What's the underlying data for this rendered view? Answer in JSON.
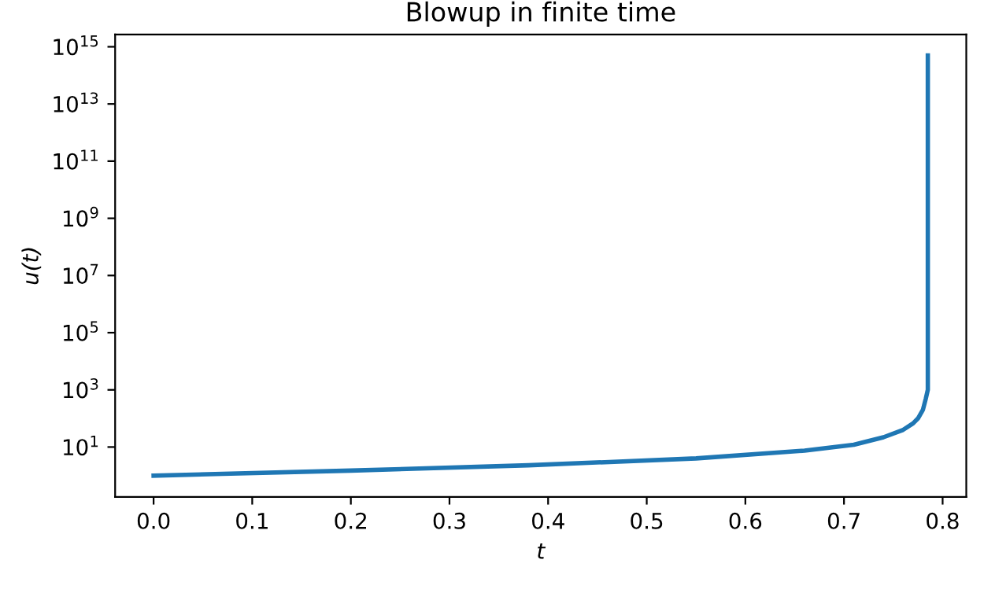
{
  "chart_data": {
    "type": "line",
    "title": "Blowup in finite time",
    "xlabel": "t",
    "ylabel": "u(t)",
    "log": "y",
    "x": [
      0,
      0.07,
      0.2,
      0.38,
      0.55,
      0.66,
      0.71,
      0.74,
      0.76,
      0.77,
      0.775,
      0.78,
      0.783,
      0.785,
      0.785,
      0.785,
      0.785
    ],
    "series": [
      {
        "color": "#1f77b4",
        "values": [
          1,
          1.15,
          1.5,
          2.3,
          4,
          7.5,
          12,
          22,
          40,
          67,
          100,
          200,
          500,
          1000,
          1000000,
          10000000000,
          500000000000000
        ]
      }
    ],
    "xlim": [
      -0.039,
      0.824
    ],
    "xticks": [
      {
        "value": 0,
        "label": "0.0"
      },
      0.1,
      0.2,
      0.3,
      0.4,
      0.5,
      0.6,
      0.7,
      0.8
    ],
    "ylim": [
      0.18,
      2700000000000000.0
    ],
    "yticks": [
      {
        "value": 10,
        "label": "10$^{1}$"
      },
      {
        "value": 1000,
        "label": "10$^{3}$"
      },
      {
        "value": 100000,
        "label": "10$^{5}$"
      },
      {
        "value": 10000000,
        "label": "10$^{7}$"
      },
      {
        "value": 1000000000,
        "label": "10$^{9}$"
      },
      {
        "value": 100000000000,
        "label": "10$^{11}$"
      },
      {
        "value": 10000000000000,
        "label": "10$^{13}$"
      },
      {
        "value": 1000000000000000,
        "label": "10$^{15}$"
      }
    ],
    "grid": false,
    "marker": "none",
    "line_style": "solid"
  }
}
